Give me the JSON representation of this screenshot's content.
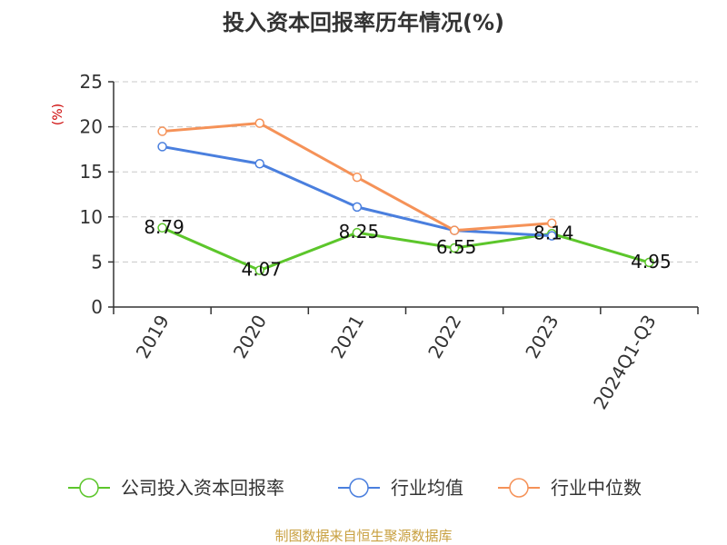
{
  "chart_data": {
    "type": "line",
    "title": "投入资本回报率历年情况(%)",
    "unit_label": "(%)",
    "categories": [
      "2019",
      "2020",
      "2021",
      "2022",
      "2023",
      "2024Q1-Q3"
    ],
    "ylim": [
      0,
      25
    ],
    "yticks": [
      0,
      5,
      10,
      15,
      20,
      25
    ],
    "grid": "horizontal dashed",
    "legend_position": "bottom",
    "series": [
      {
        "name": "公司投入资本回报率",
        "color": "#5cc62b",
        "values": [
          8.79,
          4.07,
          8.25,
          6.55,
          8.14,
          4.95
        ],
        "labels": [
          "8.79",
          "4.07",
          "8.25",
          "6.55",
          "8.14",
          "4.95"
        ]
      },
      {
        "name": "行业均值",
        "color": "#4a7fde",
        "values": [
          17.8,
          15.9,
          11.1,
          8.5,
          7.9,
          null
        ]
      },
      {
        "name": "行业中位数",
        "color": "#f59258",
        "values": [
          19.5,
          20.4,
          14.4,
          8.5,
          9.3,
          null
        ]
      }
    ]
  },
  "source": "制图数据来自恒生聚源数据库"
}
